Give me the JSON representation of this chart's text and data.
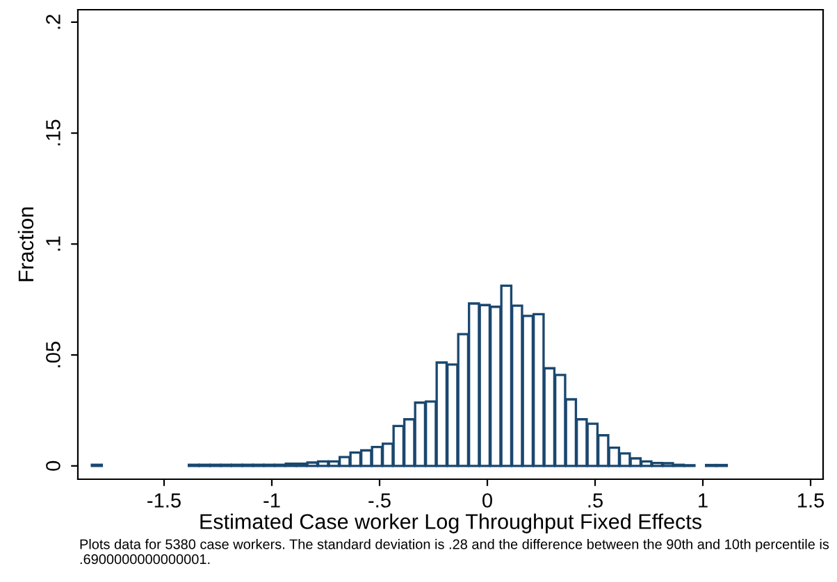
{
  "chart_data": {
    "type": "histogram",
    "xlabel": "Estimated Case worker Log Throughput Fixed Effects",
    "ylabel": "Fraction",
    "annotations": [
      "Plots data for 5380 case workers. The standard deviation is .28 and the difference between the 90th and 10th percentile is .6900000000000001."
    ],
    "color": "#1a476f",
    "bins": [
      -1.835,
      -1.785,
      -1.735,
      -1.685,
      -1.635,
      -1.585,
      -1.535,
      -1.485,
      -1.435,
      -1.385,
      -1.335,
      -1.285,
      -1.235,
      -1.185,
      -1.135,
      -1.085,
      -1.035,
      -0.985,
      -0.935,
      -0.885,
      -0.835,
      -0.785,
      -0.735,
      -0.685,
      -0.635,
      -0.585,
      -0.535,
      -0.485,
      -0.435,
      -0.385,
      -0.335,
      -0.285,
      -0.235,
      -0.185,
      -0.135,
      -0.085,
      -0.035,
      0.015,
      0.065,
      0.115,
      0.165,
      0.215,
      0.265,
      0.315,
      0.365,
      0.415,
      0.465,
      0.515,
      0.565,
      0.615,
      0.665,
      0.715,
      0.765,
      0.815,
      0.865,
      0.915,
      0.965,
      1.015,
      1.065,
      1.115
    ],
    "values": [
      0.0005,
      0,
      0,
      0,
      0,
      0,
      0,
      0,
      0,
      0.0005,
      0.0005,
      0.0005,
      0.0005,
      0.0005,
      0.0005,
      0.0005,
      0.0005,
      0.0005,
      0.001,
      0.001,
      0.0015,
      0.002,
      0.002,
      0.004,
      0.006,
      0.007,
      0.0085,
      0.01,
      0.018,
      0.021,
      0.0285,
      0.029,
      0.0466,
      0.0457,
      0.0594,
      0.0732,
      0.0725,
      0.0717,
      0.0812,
      0.0722,
      0.0676,
      0.0684,
      0.044,
      0.041,
      0.03,
      0.021,
      0.019,
      0.0138,
      0.0082,
      0.0056,
      0.0034,
      0.002,
      0.0013,
      0.0012,
      0.0005,
      0.0003,
      0,
      0.0004,
      0.0004
    ],
    "xlim": [
      -1.9,
      1.558
    ],
    "ylim": [
      -0.006,
      0.2056
    ],
    "xticks": [
      -1.5,
      -1,
      {
        "value": -0.5,
        "label": "-.5"
      },
      0,
      {
        "value": 0.5,
        "label": ".5"
      },
      1,
      1.5
    ],
    "yticks": [
      0,
      {
        "value": 0.05,
        "label": ".05"
      },
      {
        "value": 0.1,
        "label": ".1"
      },
      {
        "value": 0.15,
        "label": ".15"
      },
      {
        "value": 0.2,
        "label": ".2"
      }
    ],
    "grid": false
  }
}
